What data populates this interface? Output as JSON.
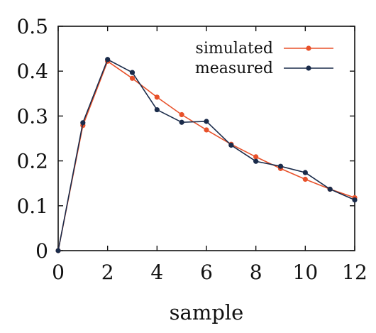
{
  "chart_data": {
    "type": "line",
    "title": "",
    "xlabel": "sample",
    "ylabel": "",
    "xlim": [
      0,
      12
    ],
    "ylim": [
      0,
      0.5
    ],
    "xticks": [
      0,
      2,
      4,
      6,
      8,
      10,
      12
    ],
    "yticks": [
      0,
      0.1,
      0.2,
      0.3,
      0.4,
      0.5
    ],
    "xtick_labels": [
      "0",
      "2",
      "4",
      "6",
      "8",
      "10",
      "12"
    ],
    "ytick_labels": [
      "0",
      "0.1",
      "0.2",
      "0.3",
      "0.4",
      "0.5"
    ],
    "grid": false,
    "legend_position": "top-right",
    "series": [
      {
        "name": "simulated",
        "color": "#e8512a",
        "x": [
          0,
          1,
          2,
          3,
          4,
          5,
          6,
          7,
          8,
          9,
          10,
          11,
          12
        ],
        "y": [
          0.0,
          0.279,
          0.422,
          0.384,
          0.342,
          0.303,
          0.269,
          0.237,
          0.209,
          0.183,
          0.159,
          0.137,
          0.118
        ]
      },
      {
        "name": "measured",
        "color": "#1a2b4a",
        "x": [
          0,
          1,
          2,
          3,
          4,
          5,
          6,
          7,
          8,
          9,
          10,
          11,
          12
        ],
        "y": [
          0.0,
          0.285,
          0.426,
          0.397,
          0.314,
          0.286,
          0.288,
          0.235,
          0.199,
          0.188,
          0.174,
          0.137,
          0.113
        ]
      }
    ]
  }
}
